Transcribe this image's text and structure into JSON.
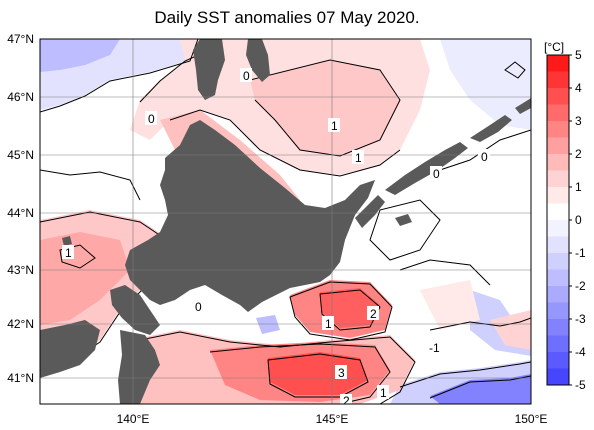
{
  "title": "Daily SST anomalies 07 May 2020.",
  "colorbar": {
    "unit": "[°C]",
    "ticks": [
      "5",
      "4",
      "3",
      "2",
      "1",
      "0",
      "-1",
      "-2",
      "-3",
      "-4",
      "-5"
    ],
    "colors": [
      "#ff1a1a",
      "#ff3535",
      "#ff4f4f",
      "#ff6a6a",
      "#ff8585",
      "#ffa0a0",
      "#ffbaba",
      "#ffd3d3",
      "#ffe9e9",
      "#ffffff",
      "#f3f3ff",
      "#e2e2ff",
      "#d0d0ff",
      "#bdbdff",
      "#aaaaff",
      "#9696ff",
      "#8282ff",
      "#6e6eff",
      "#5a5aff",
      "#4646ff"
    ]
  },
  "map": {
    "lat_labels": [
      "47°N",
      "46°N",
      "45°N",
      "44°N",
      "43°N",
      "42°N",
      "41°N"
    ],
    "lon_labels": [
      "140°E",
      "145°E",
      "150°E"
    ],
    "land_color": "#5a5a5a",
    "contour_labels": [
      "0",
      "0",
      "1",
      "1",
      "0",
      "0",
      "1",
      "0",
      "1",
      "-1",
      "2",
      "3",
      "2",
      "1"
    ]
  }
}
